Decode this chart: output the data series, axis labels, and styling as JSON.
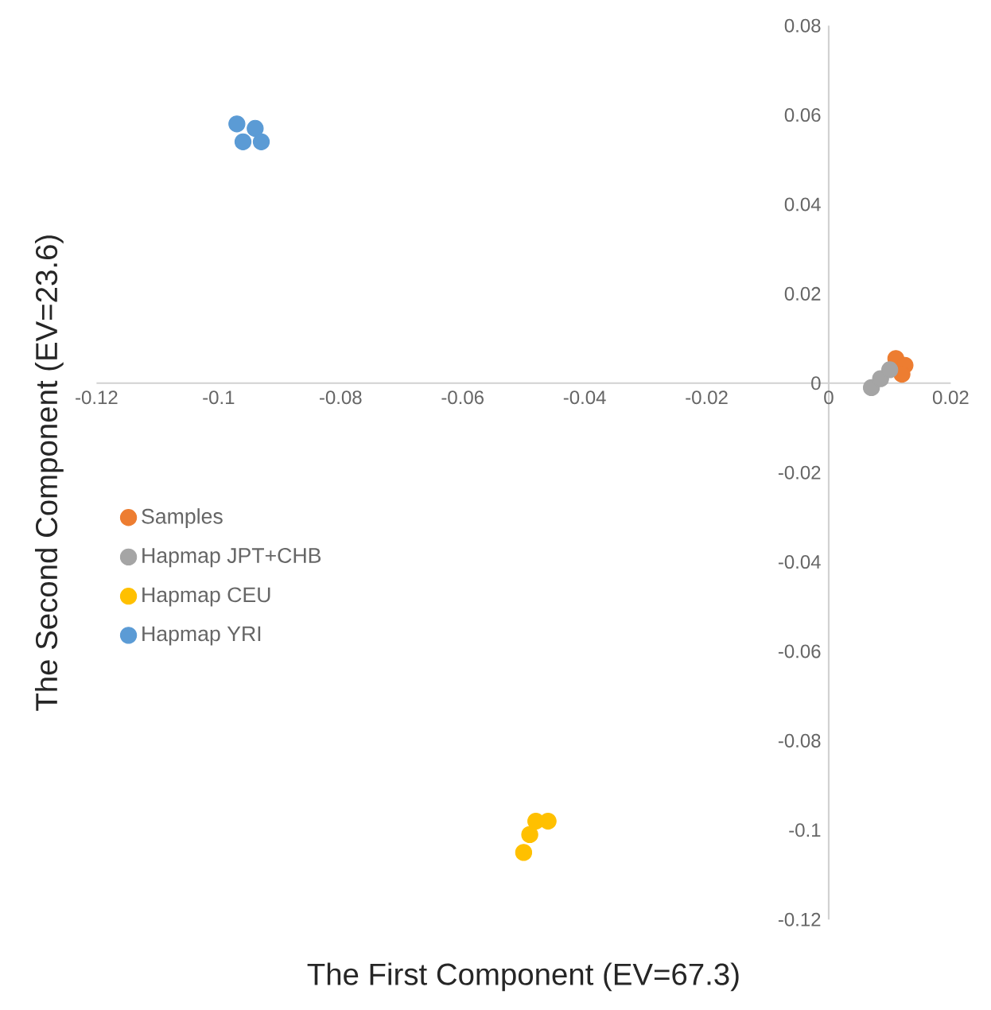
{
  "chart_data": {
    "type": "scatter",
    "xlabel": "The First Component (EV=67.3)",
    "ylabel": "The Second Component (EV=23.6)",
    "xlim": [
      -0.12,
      0.02
    ],
    "ylim": [
      -0.12,
      0.08
    ],
    "xticks": [
      -0.12,
      -0.1,
      -0.08,
      -0.06,
      -0.04,
      -0.02,
      0,
      0.02
    ],
    "yticks": [
      -0.12,
      -0.1,
      -0.08,
      -0.06,
      -0.04,
      -0.02,
      0,
      0.02,
      0.04,
      0.06,
      0.08
    ],
    "grid": false,
    "legend": "left",
    "marker": "circle",
    "series": [
      {
        "name": "Samples",
        "color": "#ed7d31",
        "x": [
          0.011,
          0.0125,
          0.012
        ],
        "values": [
          0.0055,
          0.004,
          0.002
        ]
      },
      {
        "name": "Hapmap JPT+CHB",
        "color": "#a5a5a5",
        "x": [
          0.007,
          0.0085,
          0.01
        ],
        "values": [
          -0.001,
          0.001,
          0.003
        ]
      },
      {
        "name": "Hapmap CEU",
        "color": "#ffc000",
        "x": [
          -0.05,
          -0.049,
          -0.048,
          -0.046
        ],
        "values": [
          -0.105,
          -0.101,
          -0.098,
          -0.098
        ]
      },
      {
        "name": "Hapmap YRI",
        "color": "#5b9bd5",
        "x": [
          -0.097,
          -0.094,
          -0.096,
          -0.093
        ],
        "values": [
          0.058,
          0.057,
          0.054,
          0.054
        ]
      }
    ]
  }
}
